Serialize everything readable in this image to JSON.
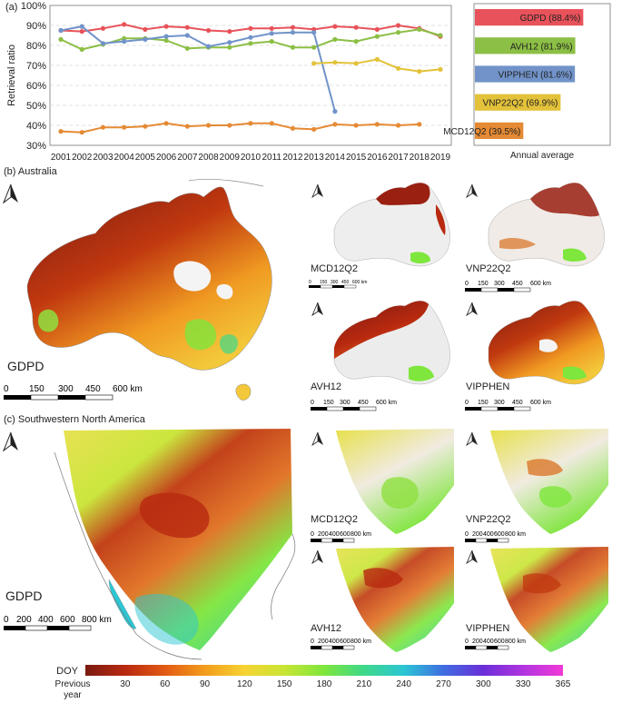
{
  "panel_a": {
    "label": "(a)",
    "chart_data": {
      "type": "line",
      "x": [
        2001,
        2002,
        2003,
        2004,
        2005,
        2006,
        2007,
        2008,
        2009,
        2010,
        2011,
        2012,
        2013,
        2014,
        2015,
        2016,
        2017,
        2018,
        2019
      ],
      "xlabels": [
        "2001",
        "2002",
        "2003",
        "2004",
        "2005",
        "2006",
        "2007",
        "2008",
        "2009",
        "2010",
        "2011",
        "2012",
        "2013",
        "2014",
        "2015",
        "2016",
        "2017",
        "2018",
        "2019"
      ],
      "ylabel": "Retrieval ratio",
      "ylim": [
        30,
        100
      ],
      "yticks": [
        30,
        40,
        50,
        60,
        70,
        80,
        90,
        100
      ],
      "yticklabels": [
        "30%",
        "40%",
        "50%",
        "60%",
        "70%",
        "80%",
        "90%",
        "100%"
      ],
      "series": [
        {
          "name": "GDPD",
          "color": "#e8525a",
          "values": [
            87.5,
            87,
            88.5,
            90.5,
            88,
            89.5,
            89,
            87.5,
            87,
            88.5,
            88.5,
            89,
            88,
            89.5,
            89,
            88,
            90,
            88.5,
            84.5
          ]
        },
        {
          "name": "AVH12",
          "color": "#8cbf45",
          "values": [
            83,
            78,
            80.5,
            83.5,
            83.5,
            82.5,
            78.5,
            79,
            79,
            81,
            82,
            79,
            79,
            83,
            82,
            84.5,
            86.5,
            88,
            85
          ]
        },
        {
          "name": "VIPPHEN",
          "color": "#7193c9",
          "values": [
            87.5,
            89.5,
            81,
            82,
            83,
            84.5,
            85,
            79.5,
            81.5,
            84,
            86,
            86.5,
            86.5,
            47,
            null,
            null,
            null,
            null,
            null
          ]
        },
        {
          "name": "VNP22Q2",
          "color": "#e3c23a",
          "values": [
            null,
            null,
            null,
            null,
            null,
            null,
            null,
            null,
            null,
            null,
            null,
            null,
            71,
            71.5,
            71,
            73,
            68.5,
            67,
            68
          ]
        },
        {
          "name": "MCD12Q2",
          "color": "#e58a35",
          "values": [
            37,
            36.5,
            39,
            39,
            39.5,
            41,
            39.5,
            40,
            40,
            41,
            41,
            38.5,
            38,
            40.5,
            40,
            40.5,
            40,
            40.5,
            null
          ]
        }
      ]
    },
    "bar_chart": {
      "type": "bar",
      "title": "Annual average",
      "categories": [
        "GDPD (88.4%)",
        "AVH12 (81.9%)",
        "VIPPHEN (81.6%)",
        "VNP22Q2 (69.9%)",
        "MCD12Q2 (39.5%)"
      ],
      "values": [
        88.4,
        81.9,
        81.6,
        69.9,
        39.5
      ],
      "colors": [
        "#e8525a",
        "#8cbf45",
        "#7193c9",
        "#e3c23a",
        "#e58a35"
      ],
      "xlim": [
        0,
        100
      ]
    }
  },
  "panel_b": {
    "label": "(b) Australia",
    "main_map_label": "GDPD",
    "main_scale": [
      "0",
      "150",
      "300",
      "450",
      "600 km"
    ],
    "small_scale_tiny": [
      "0",
      "150",
      "300",
      "450",
      "600 km"
    ],
    "small_scale": [
      "0",
      "150",
      "300",
      "450",
      "600 km"
    ],
    "small_maps": [
      "MCD12Q2",
      "VNP22Q2",
      "AVH12",
      "VIPPHEN"
    ]
  },
  "panel_c": {
    "label": "(c) Southwestern North America",
    "main_map_label": "GDPD",
    "main_scale": [
      "0",
      "200",
      "400",
      "600",
      "800 km"
    ],
    "small_scale": [
      "0",
      "200",
      "400",
      "600",
      "800 km"
    ],
    "small_maps": [
      "MCD12Q2",
      "VNP22Q2",
      "AVH12",
      "VIPPHEN"
    ]
  },
  "legend": {
    "title": "DOY",
    "ticks": [
      "Previous year",
      "30",
      "60",
      "90",
      "120",
      "150",
      "180",
      "210",
      "240",
      "270",
      "300",
      "330",
      "365"
    ],
    "colors": [
      "#7a1b12",
      "#b8290f",
      "#e25a14",
      "#f29c1c",
      "#f6d332",
      "#c8e534",
      "#7ee63c",
      "#3ed88a",
      "#2bc6d4",
      "#3f6de0",
      "#6a2ed8",
      "#b035e0",
      "#f23ad6"
    ]
  }
}
